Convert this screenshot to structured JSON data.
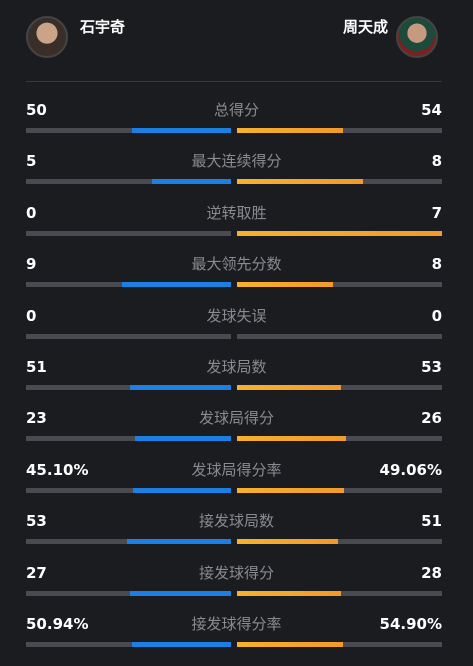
{
  "header": {
    "left_player": "石宇奇",
    "right_player": "周天成"
  },
  "stats": [
    {
      "label": "总得分",
      "left": 50,
      "right": 54
    },
    {
      "label": "最大连续得分",
      "left": 5,
      "right": 8
    },
    {
      "label": "逆转取胜",
      "left": 0,
      "right": 7
    },
    {
      "label": "最大领先分数",
      "left": 9,
      "right": 8
    },
    {
      "label": "发球失误",
      "left": 0,
      "right": 0
    },
    {
      "label": "发球局数",
      "left": 51,
      "right": 53
    },
    {
      "label": "发球局得分",
      "left": 23,
      "right": 26
    },
    {
      "label": "发球局得分率",
      "left": 45.1,
      "right": 49.06,
      "left_label": "45.10%",
      "right_label": "49.06%"
    },
    {
      "label": "接发球局数",
      "left": 53,
      "right": 51
    },
    {
      "label": "接发球得分",
      "left": 27,
      "right": 28
    },
    {
      "label": "接发球得分率",
      "left": 50.94,
      "right": 54.9,
      "left_label": "50.94%",
      "right_label": "54.90%"
    }
  ]
}
